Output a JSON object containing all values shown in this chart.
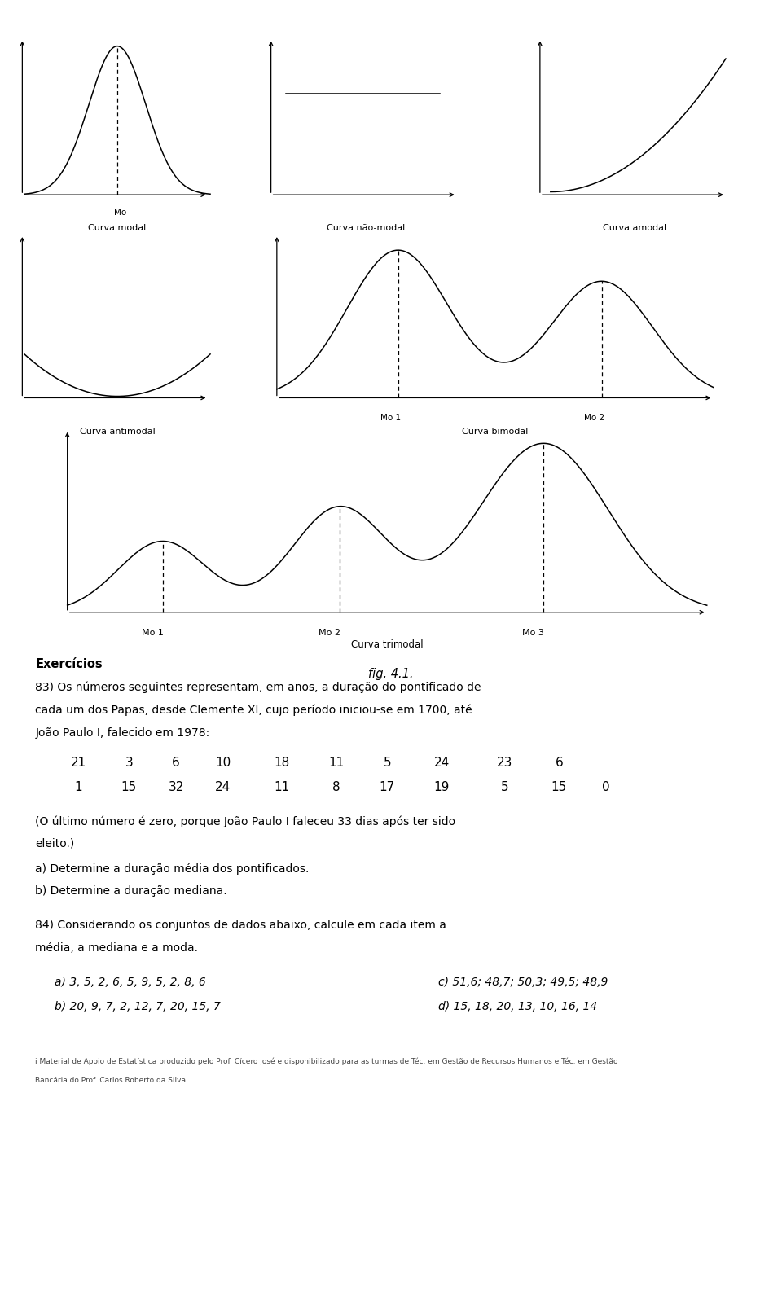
{
  "background_color": "#ffffff",
  "fig_width": 9.6,
  "fig_height": 15.9,
  "fig_label": "fig. 4.1.",
  "exercicios_title": "Exercícios",
  "ex83_line1": "83) Os números seguintes representam, em anos, a duração do pontificado de",
  "ex83_line2": "cada um dos Papas, desde Clemente XI, cujo período iniciou-se em 1700, até",
  "ex83_line3": "João Paulo I, falecido em 1978:",
  "data_row1_vals": [
    "21",
    "3",
    "6",
    "10",
    "18",
    "11",
    "5",
    "24",
    "23",
    "6"
  ],
  "data_row2_vals": [
    "1",
    "15",
    "32",
    "24",
    "11",
    "8",
    "17",
    "19",
    "5",
    "15",
    "0"
  ],
  "paren_line1": "(O último número é zero, porque João Paulo I faleceu 33 dias após ter sido",
  "paren_line2": "eleito.)",
  "part_a": "a) Determine a duração média dos pontificados.",
  "part_b": "b) Determine a duração mediana.",
  "ex84_line1": "84) Considerando os conjuntos de dados abaixo, calcule em cada item a",
  "ex84_line2": "média, a mediana e a moda.",
  "ex84_a": "a) 3, 5, 2, 6, 5, 9, 5, 2, 8, 6",
  "ex84_b": "b) 20, 9, 7, 2, 12, 7, 20, 15, 7",
  "ex84_c": "c) 51,6; 48,7; 50,3; 49,5; 48,9",
  "ex84_d": "d) 15, 18, 20, 13, 10, 16, 14",
  "footer_line1": "i Material de Apoio de Estatística produzido pelo Prof. Cícero José e disponibilizado para as turmas de Téc. em Gestão de Recursos Humanos e Téc. em Gestão",
  "footer_line2": "Bancária do Prof. Carlos Roberto da Silva."
}
